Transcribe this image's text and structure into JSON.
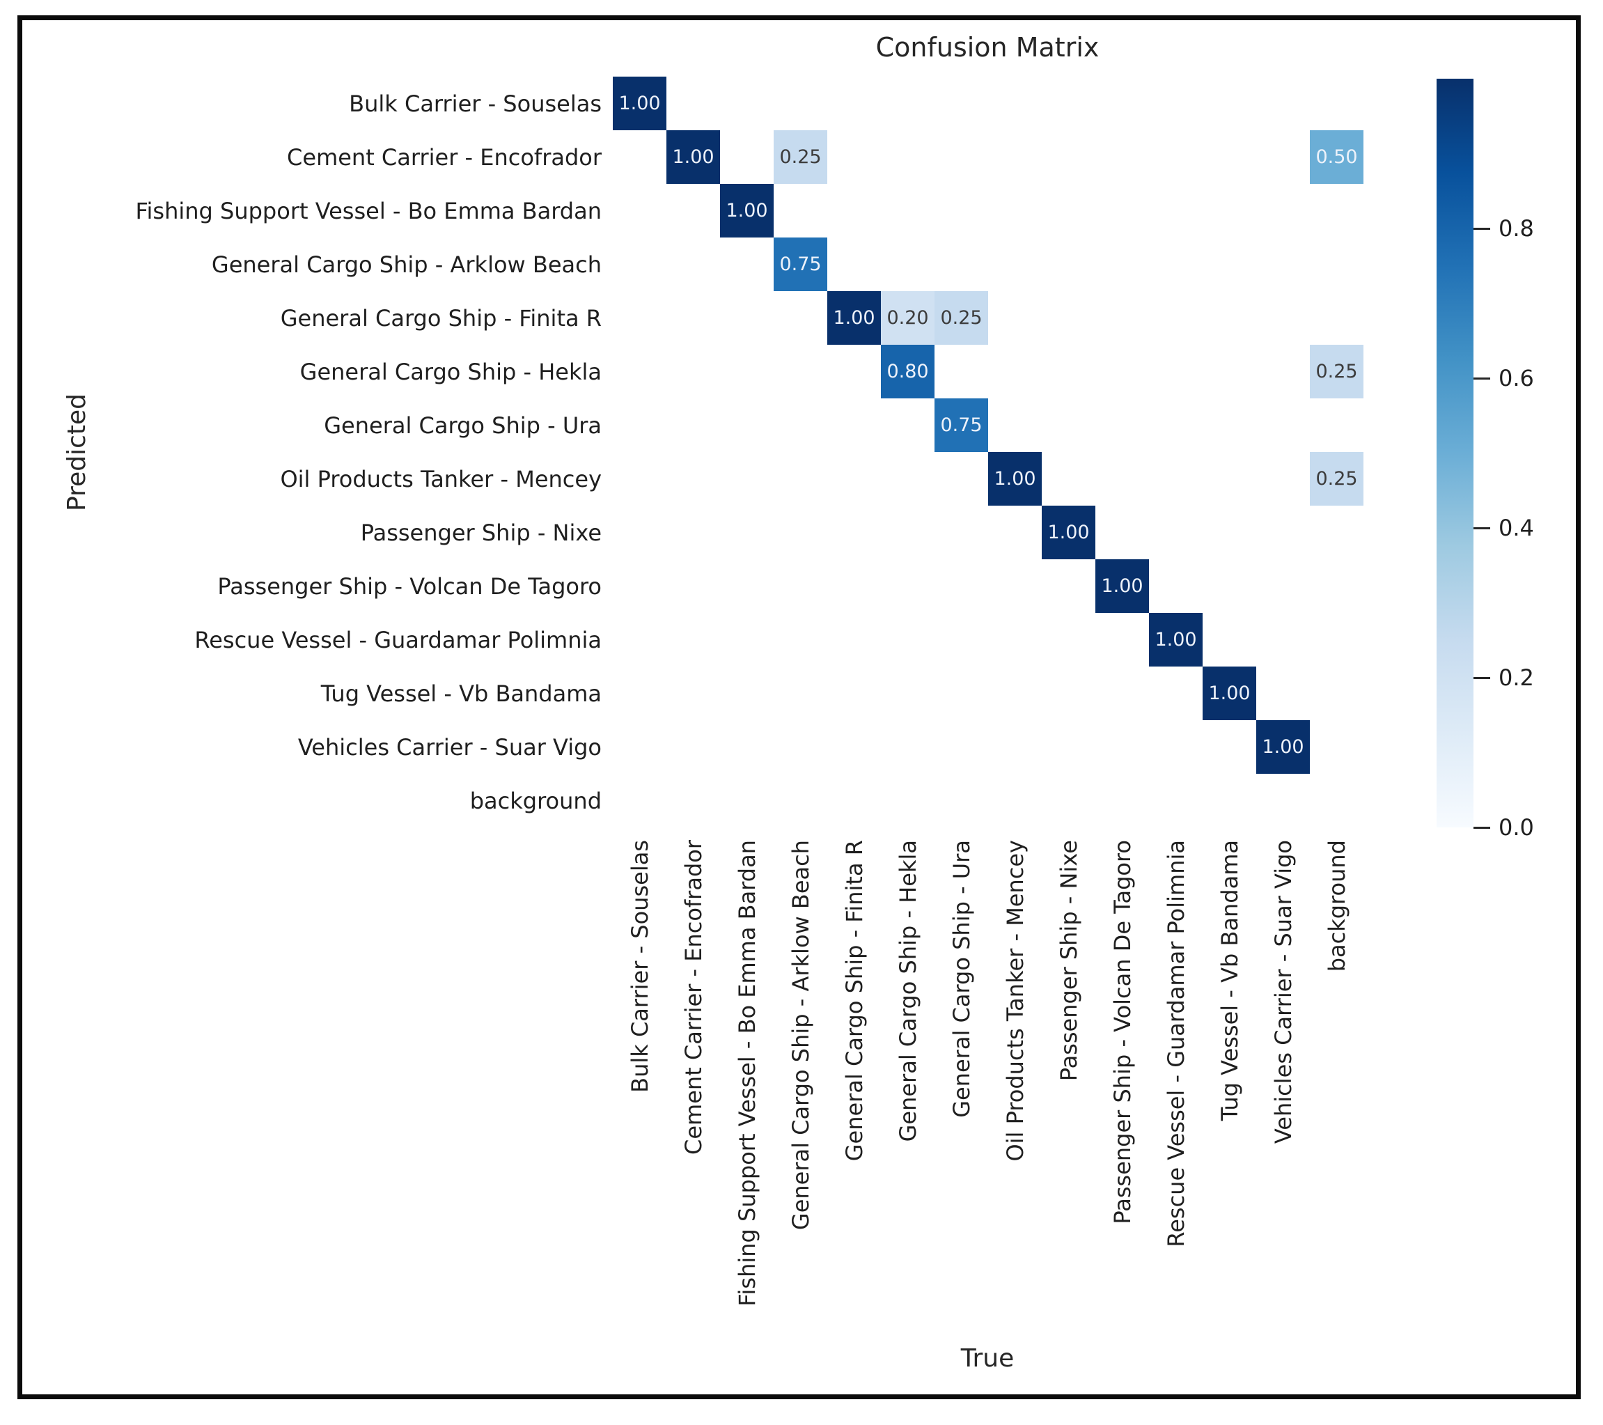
{
  "chart_data": {
    "type": "heatmap",
    "title": "Confusion Matrix",
    "xlabel": "True",
    "ylabel": "Predicted",
    "categories": [
      "Bulk Carrier - Souselas",
      "Cement Carrier - Encofrador",
      "Fishing Support Vessel - Bo Emma Bardan",
      "General Cargo Ship - Arklow Beach",
      "General Cargo Ship - Finita R",
      "General Cargo Ship - Hekla",
      "General Cargo Ship - Ura",
      "Oil Products Tanker - Mencey",
      "Passenger Ship - Nixe",
      "Passenger Ship - Volcan De Tagoro",
      "Rescue Vessel - Guardamar Polimnia",
      "Tug Vessel - Vb Bandama",
      "Vehicles Carrier - Suar Vigo",
      "background"
    ],
    "cells": [
      {
        "row": 0,
        "col": 0,
        "value": 1.0,
        "label": "1.00"
      },
      {
        "row": 1,
        "col": 1,
        "value": 1.0,
        "label": "1.00"
      },
      {
        "row": 1,
        "col": 3,
        "value": 0.25,
        "label": "0.25"
      },
      {
        "row": 1,
        "col": 13,
        "value": 0.5,
        "label": "0.50"
      },
      {
        "row": 2,
        "col": 2,
        "value": 1.0,
        "label": "1.00"
      },
      {
        "row": 3,
        "col": 3,
        "value": 0.75,
        "label": "0.75"
      },
      {
        "row": 4,
        "col": 4,
        "value": 1.0,
        "label": "1.00"
      },
      {
        "row": 4,
        "col": 5,
        "value": 0.2,
        "label": "0.20"
      },
      {
        "row": 4,
        "col": 6,
        "value": 0.25,
        "label": "0.25"
      },
      {
        "row": 5,
        "col": 5,
        "value": 0.8,
        "label": "0.80"
      },
      {
        "row": 5,
        "col": 13,
        "value": 0.25,
        "label": "0.25"
      },
      {
        "row": 6,
        "col": 6,
        "value": 0.75,
        "label": "0.75"
      },
      {
        "row": 7,
        "col": 7,
        "value": 1.0,
        "label": "1.00"
      },
      {
        "row": 7,
        "col": 13,
        "value": 0.25,
        "label": "0.25"
      },
      {
        "row": 8,
        "col": 8,
        "value": 1.0,
        "label": "1.00"
      },
      {
        "row": 9,
        "col": 9,
        "value": 1.0,
        "label": "1.00"
      },
      {
        "row": 10,
        "col": 10,
        "value": 1.0,
        "label": "1.00"
      },
      {
        "row": 11,
        "col": 11,
        "value": 1.0,
        "label": "1.00"
      },
      {
        "row": 12,
        "col": 12,
        "value": 1.0,
        "label": "1.00"
      }
    ],
    "colormap": {
      "name": "Blues",
      "stops": [
        "#f7fbff",
        "#deebf7",
        "#c6dbef",
        "#9ecae1",
        "#6baed6",
        "#4292c6",
        "#2171b5",
        "#08519c",
        "#08306b"
      ]
    },
    "colorbar": {
      "vmin": 0.0,
      "vmax": 1.0,
      "ticks": [
        0.8,
        0.6,
        0.4,
        0.2,
        0.0
      ],
      "tick_labels": [
        "0.8",
        "0.6",
        "0.4",
        "0.2",
        "0.0"
      ]
    },
    "annot_colors": {
      "light": "#edf2fa",
      "dark": "#3c3c3c"
    },
    "axes": {
      "x_tick_rotation": 90,
      "grid": false,
      "legend": "colorbar-right"
    }
  }
}
